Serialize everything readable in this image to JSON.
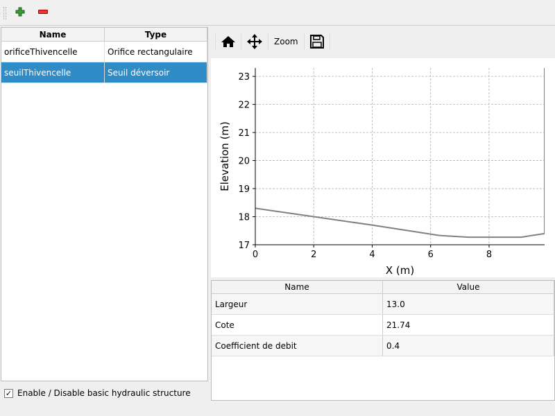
{
  "toolbar": {
    "add_icon": "plus-icon",
    "remove_icon": "minus-icon"
  },
  "tree": {
    "headers": [
      "Name",
      "Type"
    ],
    "rows": [
      {
        "name": "orificeThivencelle",
        "type": "Orifice rectangulaire",
        "selected": false
      },
      {
        "name": "seuilThivencelle",
        "type": "Seuil déversoir",
        "selected": true
      }
    ]
  },
  "enable": {
    "label": "Enable / Disable basic hydraulic structure",
    "checked": true
  },
  "plot_toolbar": {
    "home_icon": "home-icon",
    "pan_icon": "move-icon",
    "zoom_label": "Zoom",
    "save_icon": "save-icon"
  },
  "props": {
    "headers": [
      "Name",
      "Value"
    ],
    "rows": [
      {
        "name": "Largeur",
        "value": "13.0"
      },
      {
        "name": "Cote",
        "value": "21.74"
      },
      {
        "name": "Coefficient de debit",
        "value": "0.4"
      }
    ]
  },
  "chart_data": {
    "type": "line",
    "xlabel": "X (m)",
    "ylabel": "Elevation (m)",
    "xlim": [
      0,
      9.9
    ],
    "ylim": [
      17,
      23.3
    ],
    "xticks": [
      0,
      2,
      4,
      6,
      8
    ],
    "yticks": [
      17,
      18,
      19,
      20,
      21,
      22,
      23
    ],
    "grid": true,
    "line_color": "#808080",
    "x": [
      0,
      2,
      4,
      6.3,
      7.3,
      9.1,
      9.9,
      9.9
    ],
    "y": [
      18.3,
      18.0,
      17.7,
      17.33,
      17.27,
      17.27,
      17.4,
      23.5
    ]
  }
}
